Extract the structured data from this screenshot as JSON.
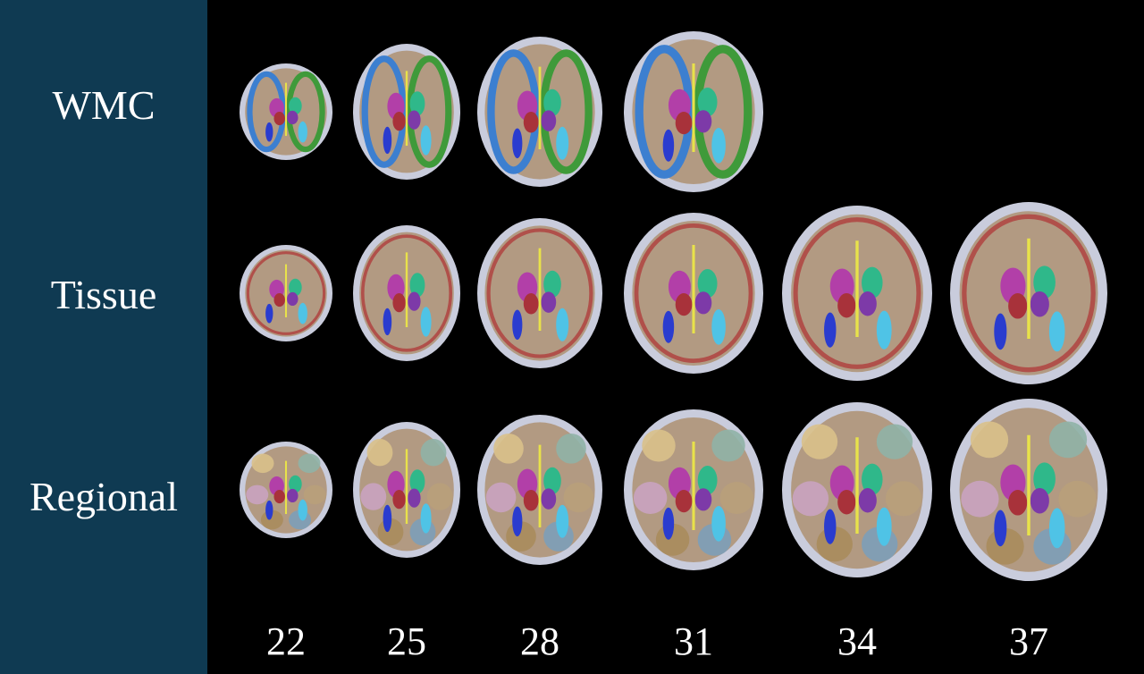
{
  "rows": [
    {
      "key": "wmc",
      "label": "WMC",
      "ages_shown": [
        "22",
        "25",
        "28",
        "31"
      ]
    },
    {
      "key": "tissue",
      "label": "Tissue",
      "ages_shown": [
        "22",
        "25",
        "28",
        "31",
        "34",
        "37"
      ]
    },
    {
      "key": "regional",
      "label": "Regional",
      "ages_shown": [
        "22",
        "25",
        "28",
        "31",
        "34",
        "37"
      ]
    }
  ],
  "ages": [
    "22",
    "25",
    "28",
    "31",
    "34",
    "37"
  ],
  "colors": {
    "sidebar": "#0f3a52",
    "background": "#000000",
    "text": "#ffffff",
    "skull": "#c9ccdc",
    "brain_fill": "#b29a82",
    "wmc_blue": "#3c7fd0",
    "wmc_green": "#3f9a3a",
    "cortex_red": "#b0504a",
    "basal_magenta": "#b23fa8",
    "basal_purple": "#7d3aa8",
    "thalamus_red": "#a8323a",
    "basal_green": "#2fb88a",
    "ventricle_cyan": "#4fc3e6",
    "ventricle_blue": "#2a3ccf",
    "midline_yellow": "#e8e24a"
  }
}
